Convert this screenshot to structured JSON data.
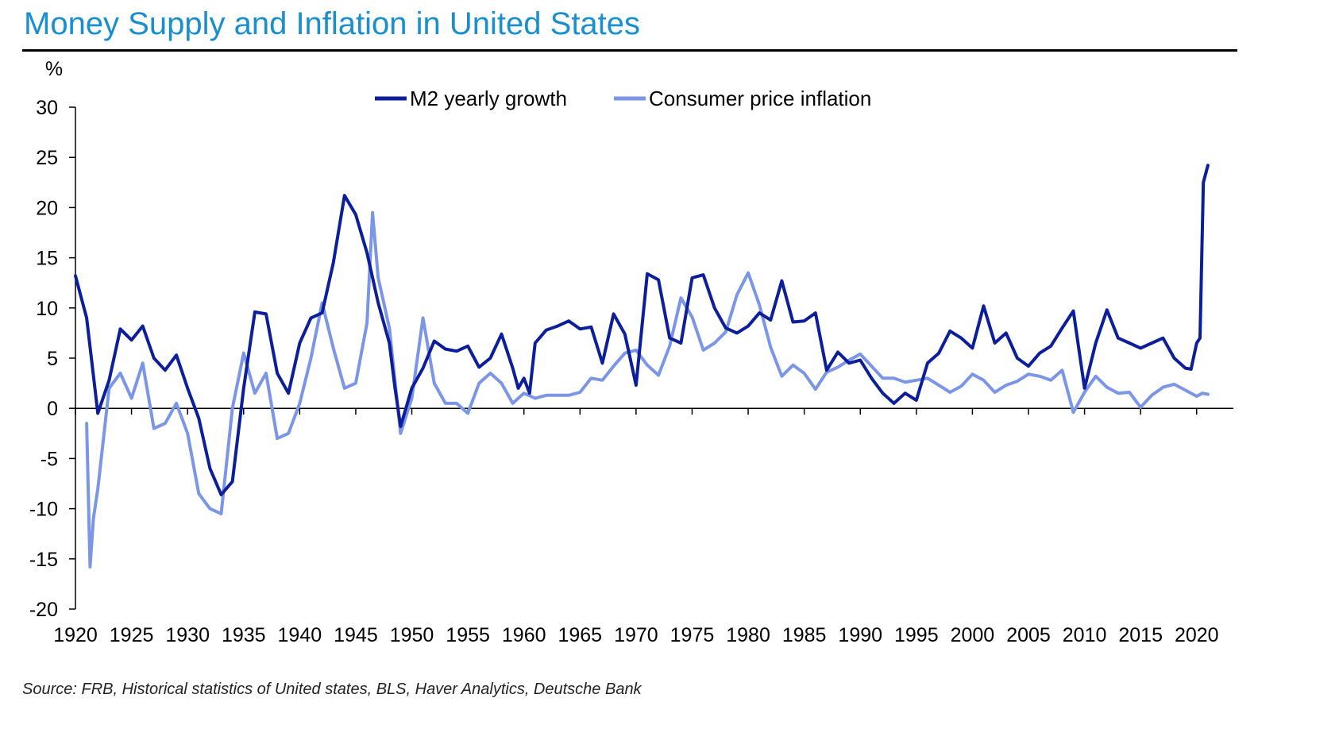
{
  "title": "Money Supply and Inflation in United States",
  "source": "Source: FRB, Historical statistics of United states,  BLS, Haver Analytics, Deutsche Bank",
  "chart_data": {
    "type": "line",
    "title": "Money Supply and Inflation in United States",
    "ylabel": "%",
    "xlabel": "",
    "xlim": [
      1920,
      2022
    ],
    "ylim": [
      -20,
      30
    ],
    "y_ticks": [
      "-20",
      "-15",
      "-10",
      "-5",
      "0",
      "5",
      "10",
      "15",
      "20",
      "25",
      "30"
    ],
    "x_ticks": [
      "1920",
      "1925",
      "1930",
      "1935",
      "1940",
      "1945",
      "1950",
      "1955",
      "1960",
      "1965",
      "1970",
      "1975",
      "1980",
      "1985",
      "1990",
      "1995",
      "2000",
      "2005",
      "2010",
      "2015",
      "2020"
    ],
    "legend_position": "top-center",
    "series": [
      {
        "name": "M2 yearly growth",
        "color": "#0d1e9b",
        "x": [
          1920,
          1921,
          1922,
          1923,
          1924,
          1925,
          1926,
          1927,
          1928,
          1929,
          1930,
          1931,
          1932,
          1933,
          1934,
          1935,
          1936,
          1937,
          1938,
          1939,
          1940,
          1941,
          1942,
          1943,
          1944,
          1945,
          1946,
          1947,
          1948,
          1948.5,
          1949,
          1950,
          1951,
          1952,
          1953,
          1954,
          1955,
          1956,
          1957,
          1958,
          1959,
          1959.5,
          1960,
          1960.5,
          1961,
          1962,
          1963,
          1964,
          1965,
          1966,
          1967,
          1968,
          1969,
          1970,
          1971,
          1972,
          1973,
          1974,
          1975,
          1976,
          1977,
          1978,
          1979,
          1980,
          1981,
          1982,
          1983,
          1984,
          1985,
          1986,
          1987,
          1988,
          1989,
          1990,
          1991,
          1992,
          1993,
          1994,
          1995,
          1996,
          1997,
          1998,
          1999,
          2000,
          2001,
          2002,
          2003,
          2004,
          2005,
          2006,
          2007,
          2008,
          2009,
          2010,
          2011,
          2012,
          2013,
          2014,
          2015,
          2016,
          2017,
          2018,
          2019,
          2019.5,
          2020,
          2020.3,
          2020.6,
          2021
        ],
        "values": [
          13.2,
          9.0,
          -0.5,
          2.8,
          7.9,
          6.8,
          8.2,
          5.0,
          3.8,
          5.3,
          2.0,
          -1.0,
          -6.0,
          -8.6,
          -7.3,
          2.0,
          9.6,
          9.4,
          3.5,
          1.5,
          6.5,
          9.0,
          9.5,
          14.5,
          21.2,
          19.3,
          15.5,
          10.5,
          6.5,
          2.0,
          -1.8,
          2.0,
          4.0,
          6.7,
          5.9,
          5.7,
          6.2,
          4.1,
          5.0,
          7.4,
          4.0,
          2.0,
          3.0,
          1.5,
          6.5,
          7.8,
          8.2,
          8.7,
          7.9,
          8.1,
          4.5,
          9.4,
          7.4,
          2.3,
          13.4,
          12.8,
          7.0,
          6.5,
          13.0,
          13.3,
          10.0,
          8.0,
          7.5,
          8.2,
          9.5,
          8.8,
          12.7,
          8.6,
          8.7,
          9.5,
          3.8,
          5.6,
          4.5,
          4.8,
          3.0,
          1.5,
          0.5,
          1.5,
          0.8,
          4.5,
          5.5,
          7.7,
          7.0,
          6.0,
          10.2,
          6.5,
          7.5,
          5.0,
          4.2,
          5.5,
          6.2,
          8.0,
          9.7,
          2.0,
          6.5,
          9.8,
          7.0,
          6.5,
          6.0,
          6.5,
          7.0,
          5.0,
          4.0,
          3.9,
          6.5,
          7.0,
          22.5,
          24.2
        ]
      },
      {
        "name": "Consumer price inflation",
        "color": "#7b96e6",
        "x": [
          1921,
          1921.3,
          1921.6,
          1922,
          1922.5,
          1923,
          1924,
          1925,
          1926,
          1927,
          1928,
          1929,
          1930,
          1931,
          1932,
          1933,
          1934,
          1935,
          1936,
          1937,
          1938,
          1939,
          1940,
          1941,
          1942,
          1943,
          1944,
          1945,
          1946,
          1946.5,
          1947,
          1948,
          1949,
          1950,
          1951,
          1952,
          1953,
          1954,
          1955,
          1956,
          1957,
          1958,
          1959,
          1960,
          1961,
          1962,
          1963,
          1964,
          1965,
          1966,
          1967,
          1968,
          1969,
          1970,
          1971,
          1972,
          1973,
          1974,
          1975,
          1976,
          1977,
          1978,
          1979,
          1980,
          1981,
          1982,
          1983,
          1984,
          1985,
          1986,
          1987,
          1988,
          1989,
          1990,
          1991,
          1992,
          1993,
          1994,
          1995,
          1996,
          1997,
          1998,
          1999,
          2000,
          2001,
          2002,
          2003,
          2004,
          2005,
          2006,
          2007,
          2008,
          2009,
          2010,
          2011,
          2012,
          2013,
          2014,
          2015,
          2016,
          2017,
          2018,
          2019,
          2020,
          2020.5,
          2021
        ],
        "values": [
          -1.5,
          -15.8,
          -11.0,
          -8.0,
          -3.0,
          2.0,
          3.5,
          1.0,
          4.5,
          -2.0,
          -1.5,
          0.5,
          -2.5,
          -8.5,
          -10.0,
          -10.5,
          0.0,
          5.5,
          1.5,
          3.5,
          -3.0,
          -2.5,
          0.5,
          5.0,
          10.5,
          6.0,
          2.0,
          2.5,
          8.5,
          19.5,
          13.0,
          8.0,
          -2.5,
          1.0,
          9.0,
          2.5,
          0.5,
          0.5,
          -0.5,
          2.5,
          3.5,
          2.5,
          0.5,
          1.5,
          1.0,
          1.3,
          1.3,
          1.3,
          1.6,
          3.0,
          2.8,
          4.2,
          5.5,
          5.8,
          4.3,
          3.3,
          6.2,
          11.0,
          9.1,
          5.8,
          6.5,
          7.6,
          11.3,
          13.5,
          10.3,
          6.1,
          3.2,
          4.3,
          3.5,
          1.9,
          3.6,
          4.1,
          4.8,
          5.4,
          4.2,
          3.0,
          3.0,
          2.6,
          2.8,
          3.0,
          2.3,
          1.6,
          2.2,
          3.4,
          2.8,
          1.6,
          2.3,
          2.7,
          3.4,
          3.2,
          2.8,
          3.8,
          -0.4,
          1.6,
          3.2,
          2.1,
          1.5,
          1.6,
          0.1,
          1.3,
          2.1,
          2.4,
          1.8,
          1.2,
          1.5,
          1.4
        ]
      }
    ]
  }
}
